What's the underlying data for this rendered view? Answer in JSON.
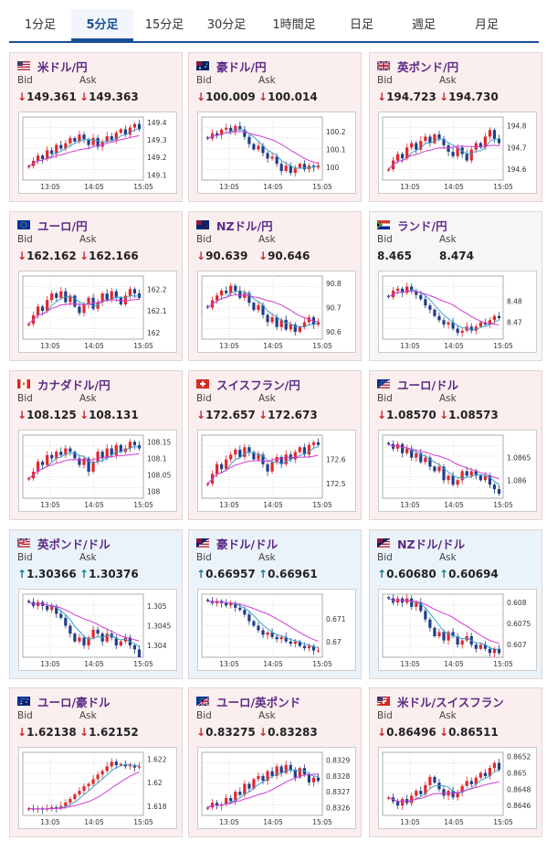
{
  "tabs": [
    {
      "label": "1分足",
      "active": false
    },
    {
      "label": "5分足",
      "active": true
    },
    {
      "label": "15分足",
      "active": false
    },
    {
      "label": "30分足",
      "active": false
    },
    {
      "label": "1時間足",
      "active": false
    },
    {
      "label": "日足",
      "active": false
    },
    {
      "label": "週足",
      "active": false
    },
    {
      "label": "月足",
      "active": false
    }
  ],
  "colors": {
    "accent": "#1a4f96",
    "title": "#5b2a86",
    "down_arrow": "#c8282d",
    "up_arrow": "#1a7a8c",
    "candle_up": "#e0282d",
    "candle_down": "#1f3d8a",
    "ma_short": "#3aa0d0",
    "ma_long": "#d23cd2"
  },
  "cards": [
    {
      "name": "米ドル/円",
      "flag": "us-flag",
      "direction": "down",
      "bid_label": "Bid",
      "ask_label": "Ask",
      "bid": "149.361",
      "ask": "149.363",
      "chart": {
        "type": "candlestick",
        "x_ticks": [
          "13:05",
          "14:05",
          "15:05"
        ],
        "y_ticks": [
          "149.4",
          "149.3",
          "149.2",
          "149.1"
        ],
        "y_tick_values": [
          149.4,
          149.3,
          149.2,
          149.1
        ],
        "ylim": [
          149.07,
          149.43
        ],
        "trend": "up",
        "close": [
          149.15,
          149.18,
          149.21,
          149.19,
          149.24,
          149.22,
          149.27,
          149.25,
          149.28,
          149.31,
          149.29,
          149.33,
          149.3,
          149.27,
          149.31,
          149.26,
          149.29,
          149.32,
          149.3,
          149.34,
          149.36,
          149.33,
          149.37,
          149.39,
          149.36
        ]
      }
    },
    {
      "name": "豪ドル/円",
      "flag": "au-flag",
      "direction": "down",
      "bid_label": "Bid",
      "ask_label": "Ask",
      "bid": "100.009",
      "ask": "100.014",
      "chart": {
        "type": "candlestick",
        "x_ticks": [
          "13:05",
          "14:05",
          "15:05"
        ],
        "y_ticks": [
          "100.2",
          "100.1",
          "100"
        ],
        "y_tick_values": [
          100.2,
          100.1,
          100.0
        ],
        "ylim": [
          99.93,
          100.28
        ],
        "trend": "down",
        "close": [
          100.16,
          100.19,
          100.18,
          100.21,
          100.22,
          100.2,
          100.23,
          100.21,
          100.17,
          100.13,
          100.1,
          100.12,
          100.08,
          100.05,
          100.06,
          100.02,
          99.98,
          100.01,
          99.97,
          100.0,
          100.02,
          99.99,
          100.01,
          100.0,
          100.01
        ]
      }
    },
    {
      "name": "英ポンド/円",
      "flag": "uk-flag",
      "direction": "down",
      "bid_label": "Bid",
      "ask_label": "Ask",
      "bid": "194.723",
      "ask": "194.730",
      "chart": {
        "type": "candlestick",
        "x_ticks": [
          "13:05",
          "14:05",
          "15:05"
        ],
        "y_ticks": [
          "194.8",
          "194.7",
          "194.6"
        ],
        "y_tick_values": [
          194.8,
          194.7,
          194.6
        ],
        "ylim": [
          194.55,
          194.84
        ],
        "trend": "up",
        "close": [
          194.6,
          194.64,
          194.67,
          194.65,
          194.7,
          194.72,
          194.69,
          194.73,
          194.75,
          194.72,
          194.76,
          194.74,
          194.71,
          194.68,
          194.66,
          194.7,
          194.67,
          194.64,
          194.69,
          194.72,
          194.7,
          194.75,
          194.78,
          194.74,
          194.72
        ]
      }
    },
    {
      "name": "ユーロ/円",
      "flag": "eu-flag",
      "direction": "down",
      "bid_label": "Bid",
      "ask_label": "Ask",
      "bid": "162.162",
      "ask": "162.166",
      "chart": {
        "type": "candlestick",
        "x_ticks": [
          "13:05",
          "14:05",
          "15:05"
        ],
        "y_ticks": [
          "162.2",
          "162.1",
          "162"
        ],
        "y_tick_values": [
          162.2,
          162.1,
          162.0
        ],
        "ylim": [
          161.97,
          162.26
        ],
        "trend": "up",
        "close": [
          162.04,
          162.08,
          162.12,
          162.1,
          162.15,
          162.18,
          162.16,
          162.19,
          162.14,
          162.17,
          162.12,
          162.09,
          162.13,
          162.16,
          162.11,
          162.14,
          162.18,
          162.15,
          162.19,
          162.16,
          162.13,
          162.17,
          162.2,
          162.18,
          162.16
        ]
      }
    },
    {
      "name": "NZドル/円",
      "flag": "nz-flag",
      "direction": "down",
      "bid_label": "Bid",
      "ask_label": "Ask",
      "bid": "90.639",
      "ask": "90.646",
      "chart": {
        "type": "candlestick",
        "x_ticks": [
          "13:05",
          "14:05",
          "15:05"
        ],
        "y_ticks": [
          "90.8",
          "90.7",
          "90.6"
        ],
        "y_tick_values": [
          90.8,
          90.7,
          90.6
        ],
        "ylim": [
          90.57,
          90.83
        ],
        "trend": "down",
        "close": [
          90.7,
          90.73,
          90.75,
          90.77,
          90.76,
          90.79,
          90.77,
          90.74,
          90.76,
          90.72,
          90.69,
          90.71,
          90.67,
          90.64,
          90.66,
          90.62,
          90.65,
          90.61,
          90.63,
          90.6,
          90.62,
          90.64,
          90.66,
          90.63,
          90.64
        ]
      }
    },
    {
      "name": "ランド/円",
      "flag": "za-flag",
      "direction": "flat",
      "bid_label": "Bid",
      "ask_label": "Ask",
      "bid": "8.465",
      "ask": "8.474",
      "chart": {
        "type": "candlestick",
        "x_ticks": [
          "13:05",
          "14:05",
          "15:05"
        ],
        "y_ticks": [
          "8.48",
          "8.47"
        ],
        "y_tick_values": [
          8.48,
          8.47
        ],
        "ylim": [
          8.462,
          8.492
        ],
        "trend": "down",
        "close": [
          8.482,
          8.485,
          8.486,
          8.484,
          8.487,
          8.485,
          8.483,
          8.481,
          8.478,
          8.476,
          8.473,
          8.471,
          8.469,
          8.47,
          8.467,
          8.465,
          8.466,
          8.468,
          8.466,
          8.468,
          8.47,
          8.469,
          8.471,
          8.473,
          8.472
        ]
      }
    },
    {
      "name": "カナダドル/円",
      "flag": "ca-flag",
      "direction": "down",
      "bid_label": "Bid",
      "ask_label": "Ask",
      "bid": "108.125",
      "ask": "108.131",
      "chart": {
        "type": "candlestick",
        "x_ticks": [
          "13:05",
          "14:05",
          "15:05"
        ],
        "y_ticks": [
          "108.15",
          "108.1",
          "108.05",
          "108"
        ],
        "y_tick_values": [
          108.15,
          108.1,
          108.05,
          108.0
        ],
        "ylim": [
          107.98,
          108.17
        ],
        "trend": "up",
        "close": [
          108.04,
          108.06,
          108.09,
          108.08,
          108.11,
          108.1,
          108.12,
          108.11,
          108.13,
          108.12,
          108.1,
          108.08,
          108.1,
          108.06,
          108.09,
          108.12,
          108.1,
          108.13,
          108.11,
          108.14,
          108.12,
          108.13,
          108.15,
          108.14,
          108.13
        ]
      }
    },
    {
      "name": "スイスフラン/円",
      "flag": "ch-flag",
      "direction": "down",
      "bid_label": "Bid",
      "ask_label": "Ask",
      "bid": "172.657",
      "ask": "172.673",
      "chart": {
        "type": "candlestick",
        "x_ticks": [
          "13:05",
          "14:05",
          "15:05"
        ],
        "y_ticks": [
          "172.6",
          "172.5"
        ],
        "y_tick_values": [
          172.6,
          172.5
        ],
        "ylim": [
          172.44,
          172.7
        ],
        "trend": "up",
        "close": [
          172.5,
          172.54,
          172.58,
          172.56,
          172.6,
          172.62,
          172.64,
          172.61,
          172.65,
          172.63,
          172.6,
          172.62,
          172.58,
          172.55,
          172.59,
          172.61,
          172.58,
          172.62,
          172.6,
          172.63,
          172.65,
          172.62,
          172.66,
          172.67,
          172.66
        ]
      }
    },
    {
      "name": "ユーロ/ドル",
      "flag": "eu-us-flag",
      "direction": "down",
      "bid_label": "Bid",
      "ask_label": "Ask",
      "bid": "1.08570",
      "ask": "1.08573",
      "chart": {
        "type": "candlestick",
        "x_ticks": [
          "13:05",
          "14:05",
          "15:05"
        ],
        "y_ticks": [
          "1.0865",
          "1.086"
        ],
        "y_tick_values": [
          1.0865,
          1.086
        ],
        "ylim": [
          1.0856,
          1.087
        ],
        "trend": "down",
        "close": [
          1.0868,
          1.0867,
          1.0868,
          1.0866,
          1.0867,
          1.0865,
          1.0866,
          1.0864,
          1.0865,
          1.0863,
          1.0862,
          1.0863,
          1.086,
          1.0861,
          1.0859,
          1.086,
          1.0862,
          1.0861,
          1.0862,
          1.0861,
          1.086,
          1.0861,
          1.0859,
          1.0858,
          1.0857
        ]
      }
    },
    {
      "name": "英ポンド/ドル",
      "flag": "uk-us-flag",
      "direction": "up",
      "bid_label": "Bid",
      "ask_label": "Ask",
      "bid": "1.30366",
      "ask": "1.30376",
      "chart": {
        "type": "candlestick",
        "x_ticks": [
          "13:05",
          "14:05",
          "15:05"
        ],
        "y_ticks": [
          "1.305",
          "1.3045",
          "1.304"
        ],
        "y_tick_values": [
          1.305,
          1.3045,
          1.304
        ],
        "ylim": [
          1.3037,
          1.3053
        ],
        "trend": "down",
        "close": [
          1.3051,
          1.305,
          1.3051,
          1.305,
          1.3049,
          1.305,
          1.3048,
          1.3047,
          1.3045,
          1.3043,
          1.3041,
          1.3042,
          1.304,
          1.3042,
          1.3044,
          1.3043,
          1.3041,
          1.3043,
          1.3042,
          1.304,
          1.3041,
          1.3042,
          1.304,
          1.3039,
          1.3037
        ]
      }
    },
    {
      "name": "豪ドル/ドル",
      "flag": "au-us-flag",
      "direction": "up",
      "bid_label": "Bid",
      "ask_label": "Ask",
      "bid": "0.66957",
      "ask": "0.66961",
      "chart": {
        "type": "candlestick",
        "x_ticks": [
          "13:05",
          "14:05",
          "15:05"
        ],
        "y_ticks": [
          "0.671",
          "0.67"
        ],
        "y_tick_values": [
          0.671,
          0.67
        ],
        "ylim": [
          0.6693,
          0.6721
        ],
        "trend": "down",
        "close": [
          0.6718,
          0.6717,
          0.6718,
          0.6717,
          0.6716,
          0.6717,
          0.6715,
          0.6714,
          0.6712,
          0.6709,
          0.6707,
          0.6705,
          0.6703,
          0.6704,
          0.6702,
          0.6701,
          0.6702,
          0.67,
          0.6699,
          0.67,
          0.6698,
          0.6697,
          0.6698,
          0.6696,
          0.6696
        ]
      }
    },
    {
      "name": "NZドル/ドル",
      "flag": "nz-us-flag",
      "direction": "up",
      "bid_label": "Bid",
      "ask_label": "Ask",
      "bid": "0.60680",
      "ask": "0.60694",
      "chart": {
        "type": "candlestick",
        "x_ticks": [
          "13:05",
          "14:05",
          "15:05"
        ],
        "y_ticks": [
          "0.608",
          "0.6075",
          "0.607"
        ],
        "y_tick_values": [
          0.608,
          0.6075,
          0.607
        ],
        "ylim": [
          0.6067,
          0.6082
        ],
        "trend": "down",
        "close": [
          0.6081,
          0.608,
          0.6081,
          0.608,
          0.6081,
          0.6079,
          0.608,
          0.6078,
          0.6076,
          0.6074,
          0.6072,
          0.6073,
          0.6071,
          0.6073,
          0.6072,
          0.607,
          0.6071,
          0.6072,
          0.607,
          0.6069,
          0.607,
          0.6069,
          0.6068,
          0.6069,
          0.6068
        ]
      }
    },
    {
      "name": "ユーロ/豪ドル",
      "flag": "eu-au-flag",
      "direction": "down",
      "bid_label": "Bid",
      "ask_label": "Ask",
      "bid": "1.62138",
      "ask": "1.62152",
      "chart": {
        "type": "candlestick",
        "x_ticks": [
          "13:05",
          "14:05",
          "15:05"
        ],
        "y_ticks": [
          "1.622",
          "1.62",
          "1.618"
        ],
        "y_tick_values": [
          1.622,
          1.62,
          1.618
        ],
        "ylim": [
          1.6172,
          1.6226
        ],
        "trend": "up",
        "close": [
          1.6178,
          1.6177,
          1.6178,
          1.6177,
          1.6178,
          1.6179,
          1.6178,
          1.618,
          1.6183,
          1.6186,
          1.619,
          1.6193,
          1.6197,
          1.6199,
          1.6203,
          1.6207,
          1.621,
          1.6214,
          1.6218,
          1.6215,
          1.6216,
          1.6214,
          1.6215,
          1.6213,
          1.6214
        ]
      }
    },
    {
      "name": "ユーロ/英ポンド",
      "flag": "eu-uk-flag",
      "direction": "down",
      "bid_label": "Bid",
      "ask_label": "Ask",
      "bid": "0.83275",
      "ask": "0.83283",
      "chart": {
        "type": "candlestick",
        "x_ticks": [
          "13:05",
          "14:05",
          "15:05"
        ],
        "y_ticks": [
          "0.8329",
          "0.8328",
          "0.8327",
          "0.8326"
        ],
        "y_tick_values": [
          0.8329,
          0.8328,
          0.8327,
          0.8326
        ],
        "ylim": [
          0.83255,
          0.83295
        ],
        "trend": "up",
        "close": [
          0.8326,
          0.83263,
          0.83261,
          0.83262,
          0.83266,
          0.83264,
          0.8327,
          0.83268,
          0.83275,
          0.83272,
          0.83278,
          0.8328,
          0.83277,
          0.83283,
          0.8328,
          0.83286,
          0.83282,
          0.83287,
          0.83284,
          0.83279,
          0.83285,
          0.83281,
          0.83276,
          0.83279,
          0.83277
        ]
      }
    },
    {
      "name": "米ドル/スイスフラン",
      "flag": "us-ch-flag",
      "direction": "down",
      "bid_label": "Bid",
      "ask_label": "Ask",
      "bid": "0.86496",
      "ask": "0.86511",
      "chart": {
        "type": "candlestick",
        "x_ticks": [
          "13:05",
          "14:05",
          "15:05"
        ],
        "y_ticks": [
          "0.8652",
          "0.865",
          "0.8648",
          "0.8646"
        ],
        "y_tick_values": [
          0.8652,
          0.865,
          0.8648,
          0.8646
        ],
        "ylim": [
          0.86448,
          0.86525
        ],
        "trend": "up",
        "close": [
          0.8647,
          0.86465,
          0.8646,
          0.86468,
          0.86463,
          0.86472,
          0.86478,
          0.86474,
          0.86485,
          0.86495,
          0.86488,
          0.8648,
          0.86472,
          0.86478,
          0.8647,
          0.86476,
          0.86484,
          0.8649,
          0.86486,
          0.86494,
          0.865,
          0.86496,
          0.86506,
          0.86512,
          0.86504
        ]
      }
    }
  ]
}
